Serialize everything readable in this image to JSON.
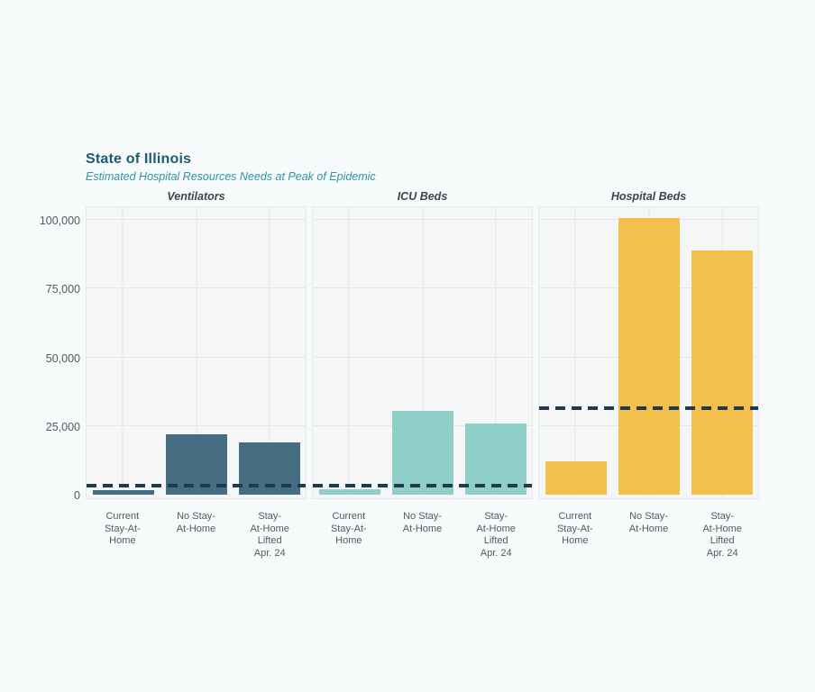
{
  "header": {
    "title": "State of Illinois",
    "subtitle": "Estimated Hospital Resources Needs at Peak of Epidemic"
  },
  "colors": {
    "page_bg": "#f7fafb",
    "panel_bg": "#f4f6f7",
    "panel_border": "#e6e8ea",
    "gridline": "#e3e6e8",
    "axis_label": "#55595e",
    "facet_title": "#3f4449",
    "title": "#1d5a73",
    "subtitle": "#2f93a8",
    "capacity_line": "#1d3c50"
  },
  "chart_data": {
    "type": "bar",
    "title": "State of Illinois",
    "subtitle": "Estimated Hospital Resources Needs at Peak of Epidemic",
    "categories": [
      "Current\nStay-At-\nHome",
      "No Stay-\nAt-Home",
      "Stay-\nAt-Home\nLifted\nApr. 24"
    ],
    "categories_flat": [
      "Current Stay-At-Home",
      "No Stay-At-Home",
      "Stay-At-Home Lifted Apr. 24"
    ],
    "facets": [
      {
        "title": "Ventilators",
        "bar_color": "#456e82",
        "values": [
          1500,
          22000,
          19000
        ],
        "capacity_line": 3300
      },
      {
        "title": "ICU Beds",
        "bar_color": "#90cfc8",
        "values": [
          2000,
          30500,
          26000
        ],
        "capacity_line": 3300
      },
      {
        "title": "Hospital Beds",
        "bar_color": "#f3c04d",
        "values": [
          12000,
          100500,
          89000
        ],
        "capacity_line": 31500
      }
    ],
    "capacity_line_style": {
      "color": "#1d3c50",
      "dash": "dashed"
    },
    "y_tick_labels": [
      "0",
      "25,000",
      "50,000",
      "75,000",
      "100,000"
    ],
    "y_tick_values": [
      0,
      25000,
      50000,
      75000,
      100000
    ],
    "ylim": [
      0,
      105000
    ],
    "grid": true,
    "legend": "none",
    "xlabel": "",
    "ylabel": ""
  }
}
